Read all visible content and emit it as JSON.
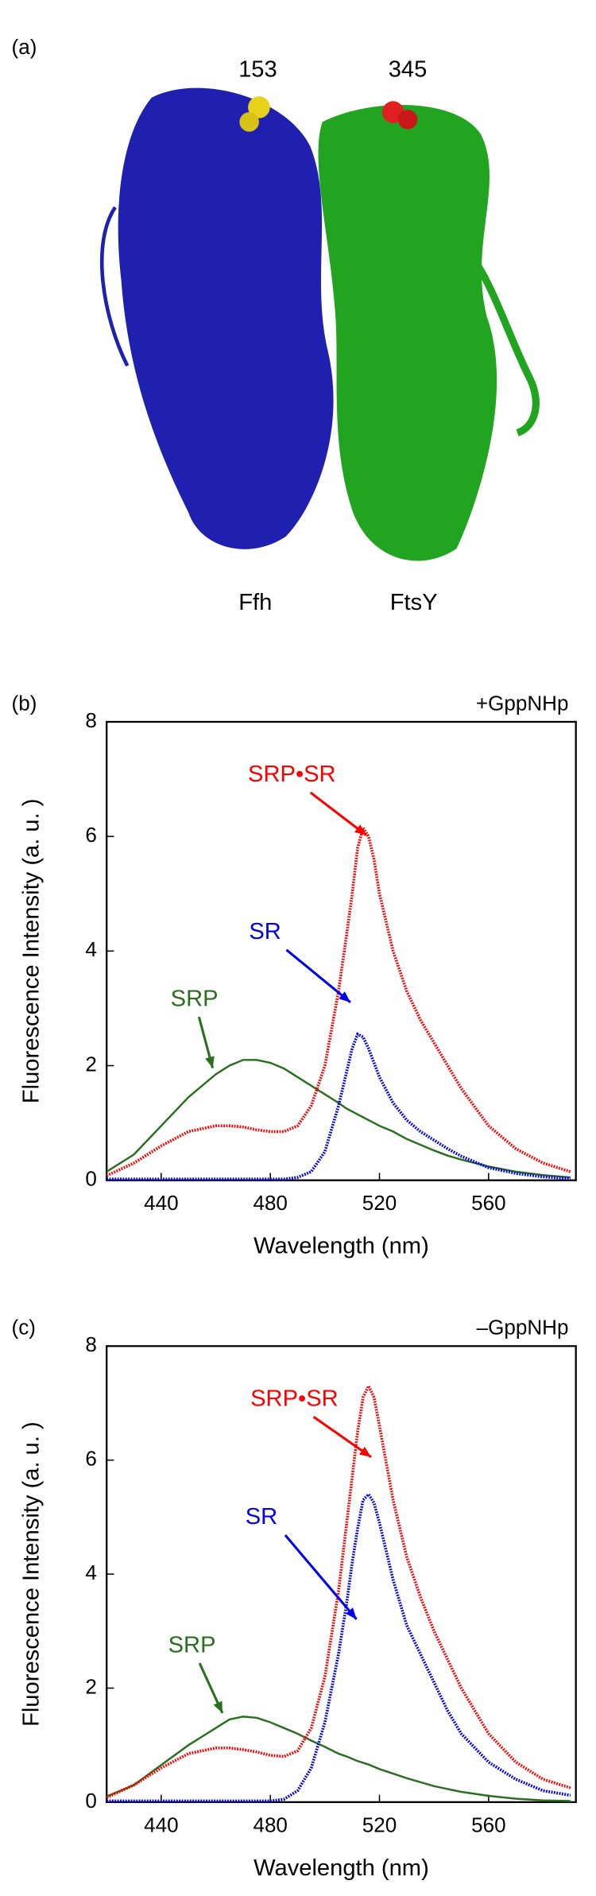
{
  "panel_a": {
    "panel_label": "(a)",
    "residue_1": "153",
    "residue_2": "345",
    "protein_1": "Ffh",
    "protein_2": "FtsY"
  },
  "chart_data": [
    {
      "type": "line",
      "panel_label": "(b)",
      "annotation": "+GppNHp",
      "xlabel": "Wavelength (nm)",
      "ylabel": "Fluorescence Intensity (a. u. )",
      "xlim": [
        420,
        592
      ],
      "xticks": [
        440,
        480,
        520,
        560
      ],
      "ylim": [
        0,
        8
      ],
      "yticks": [
        0,
        2,
        4,
        6,
        8
      ],
      "x": [
        420,
        430,
        440,
        450,
        460,
        465,
        470,
        475,
        480,
        485,
        490,
        495,
        500,
        505,
        508,
        510,
        512,
        514,
        516,
        518,
        520,
        525,
        530,
        535,
        540,
        545,
        550,
        560,
        570,
        580,
        590
      ],
      "series": [
        {
          "name": "SRP",
          "color": "#2a6e1f",
          "values": [
            0.15,
            0.45,
            0.95,
            1.45,
            1.85,
            2.0,
            2.1,
            2.1,
            2.05,
            1.95,
            1.8,
            1.65,
            1.5,
            1.35,
            1.25,
            1.2,
            1.15,
            1.1,
            1.05,
            1.0,
            0.95,
            0.85,
            0.72,
            0.62,
            0.52,
            0.43,
            0.36,
            0.24,
            0.15,
            0.09,
            0.05
          ]
        },
        {
          "name": "SRP•SR",
          "color": "#ff0000",
          "values": [
            0.08,
            0.3,
            0.6,
            0.85,
            0.95,
            0.95,
            0.93,
            0.88,
            0.85,
            0.85,
            0.95,
            1.3,
            2.0,
            3.3,
            4.3,
            5.0,
            5.8,
            6.15,
            6.0,
            5.6,
            5.0,
            4.0,
            3.3,
            2.8,
            2.4,
            2.0,
            1.6,
            0.95,
            0.55,
            0.3,
            0.15
          ]
        },
        {
          "name": "SR",
          "color": "#0000ee",
          "values": [
            0.02,
            0.02,
            0.02,
            0.02,
            0.02,
            0.02,
            0.02,
            0.02,
            0.02,
            0.02,
            0.05,
            0.15,
            0.5,
            1.3,
            1.9,
            2.3,
            2.55,
            2.5,
            2.3,
            2.05,
            1.8,
            1.35,
            1.05,
            0.85,
            0.7,
            0.55,
            0.42,
            0.22,
            0.12,
            0.06,
            0.03
          ]
        }
      ]
    },
    {
      "type": "line",
      "panel_label": "(c)",
      "annotation": "–GppNHp",
      "xlabel": "Wavelength (nm)",
      "ylabel": "Fluorescence Intensity (a. u. )",
      "xlim": [
        420,
        592
      ],
      "xticks": [
        440,
        480,
        520,
        560
      ],
      "ylim": [
        0,
        8
      ],
      "yticks": [
        0,
        2,
        4,
        6,
        8
      ],
      "x": [
        420,
        430,
        440,
        450,
        460,
        465,
        470,
        475,
        480,
        485,
        490,
        495,
        500,
        505,
        508,
        510,
        512,
        514,
        516,
        518,
        520,
        525,
        530,
        535,
        540,
        545,
        550,
        560,
        570,
        580,
        590
      ],
      "series": [
        {
          "name": "SRP",
          "color": "#2a6e1f",
          "values": [
            0.1,
            0.3,
            0.65,
            1.0,
            1.3,
            1.45,
            1.5,
            1.48,
            1.4,
            1.3,
            1.2,
            1.08,
            0.97,
            0.85,
            0.8,
            0.76,
            0.72,
            0.69,
            0.66,
            0.62,
            0.58,
            0.5,
            0.42,
            0.35,
            0.28,
            0.23,
            0.18,
            0.11,
            0.06,
            0.03,
            0.02
          ]
        },
        {
          "name": "SRP•SR",
          "color": "#ff0000",
          "values": [
            0.08,
            0.3,
            0.6,
            0.85,
            0.95,
            0.95,
            0.92,
            0.88,
            0.82,
            0.8,
            0.9,
            1.3,
            2.2,
            3.7,
            4.9,
            5.7,
            6.5,
            7.1,
            7.3,
            7.1,
            6.6,
            5.3,
            4.3,
            3.6,
            3.0,
            2.5,
            2.0,
            1.2,
            0.7,
            0.4,
            0.25
          ]
        },
        {
          "name": "SR",
          "color": "#0000ee",
          "values": [
            0.02,
            0.02,
            0.02,
            0.02,
            0.02,
            0.02,
            0.02,
            0.02,
            0.02,
            0.05,
            0.2,
            0.6,
            1.4,
            2.6,
            3.5,
            4.2,
            4.8,
            5.3,
            5.4,
            5.25,
            4.9,
            3.9,
            3.1,
            2.6,
            2.1,
            1.6,
            1.2,
            0.7,
            0.4,
            0.2,
            0.12
          ]
        }
      ]
    }
  ]
}
